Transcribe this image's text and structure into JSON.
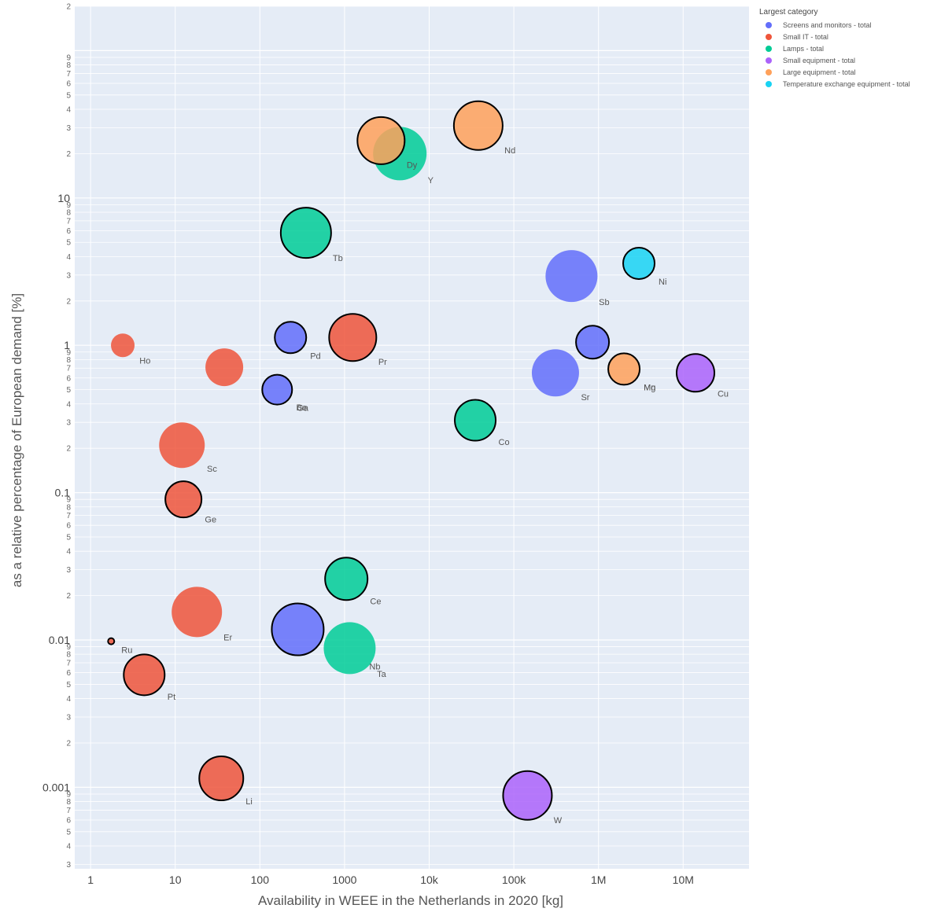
{
  "chart_data": {
    "type": "scatter",
    "subtype": "bubble",
    "xlabel": "Availability in WEEE in the Netherlands in 2020 [kg]",
    "ylabel": "as a relative percentage of European demand [%]",
    "x_scale": "log",
    "y_scale": "log",
    "xlim": [
      0.65,
      60000000
    ],
    "ylim": [
      0.00028,
      200
    ],
    "x_ticks": [
      {
        "value": 1,
        "label": "1"
      },
      {
        "value": 10,
        "label": "10"
      },
      {
        "value": 100,
        "label": "100"
      },
      {
        "value": 1000,
        "label": "1000"
      },
      {
        "value": 10000,
        "label": "10k"
      },
      {
        "value": 100000,
        "label": "100k"
      },
      {
        "value": 1000000,
        "label": "1M"
      },
      {
        "value": 10000000,
        "label": "10M"
      }
    ],
    "y_ticks": [
      {
        "value": 0.001,
        "label": "0.001"
      },
      {
        "value": 0.01,
        "label": "0.01"
      },
      {
        "value": 0.1,
        "label": "0.1"
      },
      {
        "value": 1,
        "label": "1"
      },
      {
        "value": 10,
        "label": "10"
      }
    ],
    "y_minor_ticks": [
      "2",
      "3",
      "4",
      "5",
      "6",
      "7",
      "8",
      "9"
    ],
    "grid": true,
    "legend": {
      "title": "Largest category",
      "position": "top-right",
      "items": [
        {
          "label": "Screens and monitors - total",
          "color": "#636efa"
        },
        {
          "label": "Small IT - total",
          "color": "#ef553b"
        },
        {
          "label": "Lamps - total",
          "color": "#00cc96"
        },
        {
          "label": "Small equipment - total",
          "color": "#ab63fa"
        },
        {
          "label": "Large equipment - total",
          "color": "#ffa15a"
        },
        {
          "label": "Temperature exchange equipment - total",
          "color": "#19d3f3"
        }
      ]
    },
    "points": [
      {
        "label": "Nd",
        "x": 38000,
        "y": 31,
        "category": 4,
        "size": 31,
        "outline": true
      },
      {
        "label": "Y",
        "x": 4500,
        "y": 20,
        "category": 2,
        "size": 34,
        "outline": false
      },
      {
        "label": "Dy",
        "x": 2700,
        "y": 24.5,
        "category": 4,
        "size": 30,
        "outline": true
      },
      {
        "label": "Tb",
        "x": 350,
        "y": 5.8,
        "category": 2,
        "size": 32,
        "outline": true
      },
      {
        "label": "Ni",
        "x": 3000000,
        "y": 3.6,
        "category": 5,
        "size": 20,
        "outline": true
      },
      {
        "label": "Sb",
        "x": 480000,
        "y": 2.95,
        "category": 0,
        "size": 33,
        "outline": false
      },
      {
        "label": "Sr",
        "x": 310000,
        "y": 0.65,
        "category": 0,
        "size": 30,
        "outline": false
      },
      {
        "label": "",
        "x": 850000,
        "y": 1.05,
        "category": 0,
        "size": 21,
        "outline": true
      },
      {
        "label": "Mg",
        "x": 2000000,
        "y": 0.69,
        "category": 4,
        "size": 20,
        "outline": true
      },
      {
        "label": "Mn",
        "x": 2000000,
        "y": 0.69,
        "category": 4,
        "size": 0,
        "outline": false
      },
      {
        "label": "Cu",
        "x": 14000000,
        "y": 0.65,
        "category": 3,
        "size": 24,
        "outline": true
      },
      {
        "label": "Pd",
        "x": 230,
        "y": 1.13,
        "category": 0,
        "size": 20,
        "outline": true
      },
      {
        "label": "Pr",
        "x": 1250,
        "y": 1.13,
        "category": 1,
        "size": 30,
        "outline": true
      },
      {
        "label": "Ho",
        "x": 2.4,
        "y": 1.0,
        "category": 1,
        "size": 15,
        "outline": false
      },
      {
        "label": "",
        "x": 38,
        "y": 0.71,
        "category": 1,
        "size": 24,
        "outline": false
      },
      {
        "label": "Be",
        "x": 160,
        "y": 0.5,
        "category": 0,
        "size": 19,
        "outline": true
      },
      {
        "label": "Ga",
        "x": 160,
        "y": 0.5,
        "category": 0,
        "size": 0,
        "outline": false
      },
      {
        "label": "Co",
        "x": 35000,
        "y": 0.31,
        "category": 2,
        "size": 26,
        "outline": true
      },
      {
        "label": "Sc",
        "x": 12,
        "y": 0.21,
        "category": 1,
        "size": 29,
        "outline": false
      },
      {
        "label": "Ge",
        "x": 12.5,
        "y": 0.09,
        "category": 1,
        "size": 23,
        "outline": true
      },
      {
        "label": "Ce",
        "x": 1050,
        "y": 0.026,
        "category": 2,
        "size": 27,
        "outline": true
      },
      {
        "label": "Er",
        "x": 18,
        "y": 0.0155,
        "category": 1,
        "size": 32,
        "outline": false
      },
      {
        "label": "",
        "x": 280,
        "y": 0.0118,
        "category": 0,
        "size": 33,
        "outline": true
      },
      {
        "label": "Ta",
        "x": 1150,
        "y": 0.0088,
        "category": 2,
        "size": 33,
        "outline": false
      },
      {
        "label": "Nb",
        "x": 1150,
        "y": 0.0088,
        "category": 2,
        "size": 0,
        "outline": false
      },
      {
        "label": "Ru",
        "x": 1.75,
        "y": 0.0098,
        "category": 1,
        "size": 4,
        "outline": true
      },
      {
        "label": "Pt",
        "x": 4.3,
        "y": 0.0058,
        "category": 1,
        "size": 26,
        "outline": true
      },
      {
        "label": "Li",
        "x": 35,
        "y": 0.00115,
        "category": 1,
        "size": 28,
        "outline": true
      },
      {
        "label": "W",
        "x": 145000,
        "y": 0.00088,
        "category": 3,
        "size": 31,
        "outline": true
      }
    ]
  }
}
